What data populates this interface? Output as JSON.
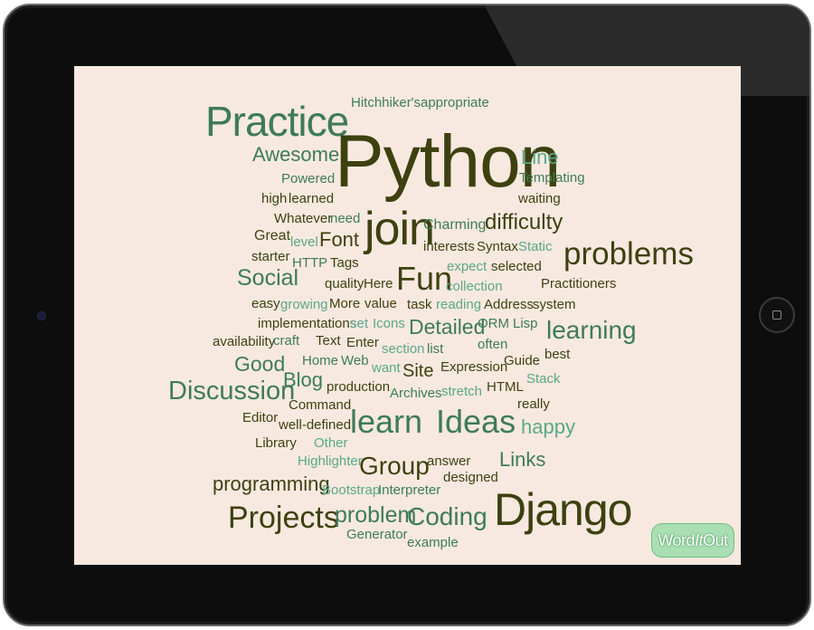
{
  "colors": {
    "dark": "#3d4110",
    "medium": "#3e7c55",
    "teal": "#5aa889",
    "background": "#f8e9e0"
  },
  "logo": {
    "part1": "Word",
    "part2": "It",
    "part3": "Out"
  },
  "word_cloud": [
    {
      "text": "Hitchhiker's",
      "tone": "medium"
    },
    {
      "text": "appropriate",
      "tone": "medium"
    },
    {
      "text": "Practice",
      "tone": "medium"
    },
    {
      "text": "Python",
      "tone": "dark"
    },
    {
      "text": "Awesome",
      "tone": "medium"
    },
    {
      "text": "Line",
      "tone": "teal"
    },
    {
      "text": "Powered",
      "tone": "medium"
    },
    {
      "text": "Templating",
      "tone": "medium"
    },
    {
      "text": "high",
      "tone": "dark"
    },
    {
      "text": "learned",
      "tone": "dark"
    },
    {
      "text": "waiting",
      "tone": "dark"
    },
    {
      "text": "Whatever",
      "tone": "dark"
    },
    {
      "text": "need",
      "tone": "medium"
    },
    {
      "text": "join",
      "tone": "dark"
    },
    {
      "text": "Charming",
      "tone": "medium"
    },
    {
      "text": "difficulty",
      "tone": "dark"
    },
    {
      "text": "Great",
      "tone": "dark"
    },
    {
      "text": "level",
      "tone": "teal"
    },
    {
      "text": "Font",
      "tone": "dark"
    },
    {
      "text": "interests",
      "tone": "dark"
    },
    {
      "text": "Syntax",
      "tone": "dark"
    },
    {
      "text": "Static",
      "tone": "teal"
    },
    {
      "text": "problems",
      "tone": "dark"
    },
    {
      "text": "starter",
      "tone": "dark"
    },
    {
      "text": "HTTP",
      "tone": "medium"
    },
    {
      "text": "Tags",
      "tone": "dark"
    },
    {
      "text": "Fun",
      "tone": "dark"
    },
    {
      "text": "expect",
      "tone": "teal"
    },
    {
      "text": "selected",
      "tone": "dark"
    },
    {
      "text": "Social",
      "tone": "medium"
    },
    {
      "text": "quality",
      "tone": "dark"
    },
    {
      "text": "Here",
      "tone": "dark"
    },
    {
      "text": "collection",
      "tone": "teal"
    },
    {
      "text": "Practitioners",
      "tone": "dark"
    },
    {
      "text": "easy",
      "tone": "dark"
    },
    {
      "text": "growing",
      "tone": "teal"
    },
    {
      "text": "More",
      "tone": "dark"
    },
    {
      "text": "value",
      "tone": "dark"
    },
    {
      "text": "task",
      "tone": "dark"
    },
    {
      "text": "reading",
      "tone": "teal"
    },
    {
      "text": "Address",
      "tone": "dark"
    },
    {
      "text": "system",
      "tone": "dark"
    },
    {
      "text": "implementations",
      "tone": "dark"
    },
    {
      "text": "set",
      "tone": "teal"
    },
    {
      "text": "Icons",
      "tone": "teal"
    },
    {
      "text": "Detailed",
      "tone": "medium"
    },
    {
      "text": "ORM",
      "tone": "medium"
    },
    {
      "text": "Lisp",
      "tone": "medium"
    },
    {
      "text": "learning",
      "tone": "medium"
    },
    {
      "text": "availability",
      "tone": "dark"
    },
    {
      "text": "craft",
      "tone": "medium"
    },
    {
      "text": "Text",
      "tone": "dark"
    },
    {
      "text": "Enter",
      "tone": "dark"
    },
    {
      "text": "section",
      "tone": "teal"
    },
    {
      "text": "list",
      "tone": "medium"
    },
    {
      "text": "often",
      "tone": "medium"
    },
    {
      "text": "best",
      "tone": "dark"
    },
    {
      "text": "Good",
      "tone": "medium"
    },
    {
      "text": "Home",
      "tone": "medium"
    },
    {
      "text": "Web",
      "tone": "medium"
    },
    {
      "text": "want",
      "tone": "teal"
    },
    {
      "text": "Site",
      "tone": "dark"
    },
    {
      "text": "Expression",
      "tone": "dark"
    },
    {
      "text": "Guide",
      "tone": "dark"
    },
    {
      "text": "Blog",
      "tone": "medium"
    },
    {
      "text": "Stack",
      "tone": "teal"
    },
    {
      "text": "Discussion",
      "tone": "medium"
    },
    {
      "text": "production",
      "tone": "dark"
    },
    {
      "text": "Archives",
      "tone": "medium"
    },
    {
      "text": "stretch",
      "tone": "teal"
    },
    {
      "text": "HTML",
      "tone": "dark"
    },
    {
      "text": "Command",
      "tone": "dark"
    },
    {
      "text": "really",
      "tone": "dark"
    },
    {
      "text": "Editor",
      "tone": "dark"
    },
    {
      "text": "learn",
      "tone": "medium"
    },
    {
      "text": "Ideas",
      "tone": "medium"
    },
    {
      "text": "well-defined",
      "tone": "dark"
    },
    {
      "text": "happy",
      "tone": "teal"
    },
    {
      "text": "Library",
      "tone": "dark"
    },
    {
      "text": "Other",
      "tone": "teal"
    },
    {
      "text": "Highlighter",
      "tone": "teal"
    },
    {
      "text": "Group",
      "tone": "dark"
    },
    {
      "text": "answer",
      "tone": "dark"
    },
    {
      "text": "Links",
      "tone": "medium"
    },
    {
      "text": "designed",
      "tone": "dark"
    },
    {
      "text": "programming",
      "tone": "dark"
    },
    {
      "text": "Bootstrap",
      "tone": "teal"
    },
    {
      "text": "Interpreter",
      "tone": "medium"
    },
    {
      "text": "Django",
      "tone": "dark"
    },
    {
      "text": "Projects",
      "tone": "dark"
    },
    {
      "text": "problem",
      "tone": "medium"
    },
    {
      "text": "Coding",
      "tone": "medium"
    },
    {
      "text": "Generator",
      "tone": "medium"
    },
    {
      "text": "example",
      "tone": "medium"
    }
  ]
}
